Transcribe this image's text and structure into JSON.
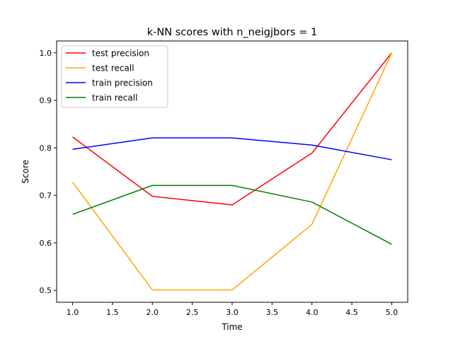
{
  "chart_data": {
    "type": "line",
    "title": "k-NN scores with n_neigjbors = 1",
    "xlabel": "Time",
    "ylabel": "Score",
    "x": [
      1,
      2,
      3,
      4,
      5
    ],
    "xlim": [
      0.8,
      5.2
    ],
    "ylim": [
      0.475,
      1.025
    ],
    "xticks": [
      1.0,
      1.5,
      2.0,
      2.5,
      3.0,
      3.5,
      4.0,
      4.5,
      5.0
    ],
    "xtick_labels": [
      "1.0",
      "1.5",
      "2.0",
      "2.5",
      "3.0",
      "3.5",
      "4.0",
      "4.5",
      "5.0"
    ],
    "yticks": [
      0.5,
      0.6,
      0.7,
      0.8,
      0.9,
      1.0
    ],
    "ytick_labels": [
      "0.5",
      "0.6",
      "0.7",
      "0.8",
      "0.9",
      "1.0"
    ],
    "grid": false,
    "legend_position": "top-left",
    "series": [
      {
        "name": "test precision",
        "color": "#ff0000",
        "values": [
          0.823,
          0.698,
          0.68,
          0.789,
          1.0
        ]
      },
      {
        "name": "test recall",
        "color": "#ffa500",
        "values": [
          0.728,
          0.501,
          0.501,
          0.639,
          1.0
        ]
      },
      {
        "name": "train precision",
        "color": "#0000ff",
        "values": [
          0.797,
          0.821,
          0.821,
          0.806,
          0.775
        ]
      },
      {
        "name": "train recall",
        "color": "#008000",
        "values": [
          0.66,
          0.721,
          0.721,
          0.686,
          0.597
        ]
      }
    ]
  }
}
